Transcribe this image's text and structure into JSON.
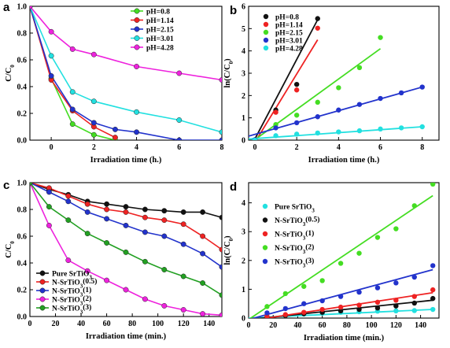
{
  "chart_data": [
    {
      "panel": "a",
      "type": "line",
      "xlabel": "Irradiation time (h.)",
      "ylabel": "C/C",
      "ylabel_sub": "0",
      "xlim": [
        -1,
        8
      ],
      "ylim": [
        0,
        1.0
      ],
      "xticks": [
        0,
        2,
        4,
        6,
        8
      ],
      "yticks": [
        0.0,
        0.2,
        0.4,
        0.6,
        0.8,
        1.0
      ],
      "legend_position": "top-right",
      "series": [
        {
          "name": "pH=0.8",
          "color": "#44dd22",
          "x": [
            -1,
            0,
            1,
            2,
            3
          ],
          "y": [
            1.0,
            0.46,
            0.12,
            0.04,
            0.0
          ]
        },
        {
          "name": "pH=1.14",
          "color": "#ee2222",
          "x": [
            -1,
            0,
            1,
            2,
            3
          ],
          "y": [
            1.0,
            0.45,
            0.22,
            0.1,
            0.02
          ]
        },
        {
          "name": "pH=2.15",
          "color": "#2233cc",
          "x": [
            -1,
            0,
            1,
            2,
            3,
            4,
            6,
            8
          ],
          "y": [
            1.0,
            0.48,
            0.23,
            0.13,
            0.08,
            0.06,
            0.0,
            0.0
          ]
        },
        {
          "name": "pH=3.01",
          "color": "#22e0e0",
          "x": [
            -1,
            0,
            1,
            2,
            4,
            6,
            8
          ],
          "y": [
            1.0,
            0.63,
            0.36,
            0.29,
            0.21,
            0.15,
            0.06
          ]
        },
        {
          "name": "pH=4.28",
          "color": "#ee22dd",
          "x": [
            -1,
            0,
            1,
            2,
            4,
            6,
            8
          ],
          "y": [
            1.0,
            0.81,
            0.68,
            0.64,
            0.55,
            0.5,
            0.45
          ]
        }
      ]
    },
    {
      "panel": "b",
      "type": "scatter",
      "xlabel": "Irradiation time (h.)",
      "ylabel": "ln(C/C)",
      "ylabel_sub": "0",
      "xlim": [
        -0.3,
        8.8
      ],
      "ylim": [
        0,
        6
      ],
      "xticks": [
        0,
        2,
        4,
        6,
        8
      ],
      "yticks": [
        0,
        1,
        2,
        3,
        4,
        5,
        6
      ],
      "legend_position": "top-left",
      "series": [
        {
          "name": "pH=0.8",
          "color": "#111111",
          "x": [
            0,
            1,
            2,
            3
          ],
          "y": [
            0,
            1.35,
            2.5,
            5.45
          ],
          "fit": [
            [
              0,
              0.05
            ],
            [
              3,
              5.4
            ]
          ]
        },
        {
          "name": "pH=1.14",
          "color": "#ee2222",
          "x": [
            0,
            1,
            2,
            3
          ],
          "y": [
            0,
            1.25,
            2.25,
            5.02
          ],
          "fit": [
            [
              0,
              -0.1
            ],
            [
              3,
              4.5
            ]
          ]
        },
        {
          "name": "pH=2.15",
          "color": "#44dd22",
          "x": [
            0,
            1,
            2,
            3,
            4,
            5,
            6
          ],
          "y": [
            0,
            0.7,
            1.12,
            1.7,
            2.35,
            3.25,
            4.6
          ],
          "fit": [
            [
              0,
              0.02
            ],
            [
              6,
              4.1
            ]
          ]
        },
        {
          "name": "pH=3.01",
          "color": "#2233cc",
          "x": [
            0,
            1,
            2,
            3,
            4,
            5,
            6,
            7,
            8
          ],
          "y": [
            0.02,
            0.55,
            0.78,
            1.05,
            1.35,
            1.6,
            1.87,
            2.12,
            2.38
          ],
          "fit": [
            [
              -0.3,
              0.18
            ],
            [
              8,
              2.38
            ]
          ]
        },
        {
          "name": "pH=4.28",
          "color": "#22e0e0",
          "x": [
            0,
            1,
            2,
            3,
            4,
            5,
            6,
            7,
            8
          ],
          "y": [
            0,
            0.2,
            0.27,
            0.32,
            0.37,
            0.42,
            0.5,
            0.55,
            0.6
          ],
          "fit": [
            [
              -0.3,
              0.05
            ],
            [
              8,
              0.6
            ]
          ]
        }
      ]
    },
    {
      "panel": "c",
      "type": "line",
      "xlabel": "Irradiation time (min.)",
      "ylabel": "C/C",
      "ylabel_sub": "0",
      "xlim": [
        0,
        150
      ],
      "ylim": [
        0,
        1.0
      ],
      "xticks": [
        0,
        20,
        40,
        60,
        80,
        100,
        120,
        140
      ],
      "yticks": [
        0.0,
        0.2,
        0.4,
        0.6,
        0.8,
        1.0
      ],
      "legend_position": "bottom-left",
      "series": [
        {
          "name": "Pure SrTiO",
          "sub": "3",
          "color": "#111111",
          "x": [
            0,
            15,
            30,
            45,
            60,
            75,
            90,
            105,
            120,
            135,
            150
          ],
          "y": [
            1.0,
            0.95,
            0.91,
            0.86,
            0.84,
            0.82,
            0.8,
            0.79,
            0.78,
            0.78,
            0.74
          ]
        },
        {
          "name": "N-SrTiO",
          "sub": "3",
          "suffix": "(0.5)",
          "color": "#ee2222",
          "x": [
            0,
            15,
            30,
            45,
            60,
            75,
            90,
            105,
            120,
            135,
            150
          ],
          "y": [
            1.0,
            0.96,
            0.9,
            0.84,
            0.8,
            0.78,
            0.74,
            0.72,
            0.69,
            0.6,
            0.5
          ]
        },
        {
          "name": "N-SrTiO",
          "sub": "3",
          "suffix": "(1)",
          "color": "#2233cc",
          "x": [
            0,
            15,
            30,
            45,
            60,
            75,
            90,
            105,
            120,
            135,
            150
          ],
          "y": [
            1.0,
            0.93,
            0.86,
            0.78,
            0.73,
            0.68,
            0.63,
            0.6,
            0.54,
            0.47,
            0.37
          ]
        },
        {
          "name": "N-SrTiO",
          "sub": "3",
          "suffix": "(2)",
          "color": "#ee22dd",
          "x": [
            0,
            15,
            30,
            45,
            60,
            75,
            90,
            105,
            120,
            135,
            150
          ],
          "y": [
            1.0,
            0.68,
            0.42,
            0.34,
            0.27,
            0.2,
            0.13,
            0.08,
            0.05,
            0.02,
            0.01
          ]
        },
        {
          "name": "N-SrTiO",
          "sub": "3",
          "suffix": "(3)",
          "color": "#22a022",
          "x": [
            0,
            15,
            30,
            45,
            60,
            75,
            90,
            105,
            120,
            135,
            150
          ],
          "y": [
            1.0,
            0.82,
            0.72,
            0.62,
            0.55,
            0.48,
            0.41,
            0.35,
            0.3,
            0.25,
            0.16
          ]
        }
      ]
    },
    {
      "panel": "d",
      "type": "scatter",
      "xlabel": "Irradiation time (min.)",
      "ylabel": "ln(C/C)",
      "ylabel_sub": "0",
      "xlim": [
        0,
        155
      ],
      "ylim": [
        0,
        4.7
      ],
      "xticks": [
        0,
        20,
        40,
        60,
        80,
        100,
        120,
        140
      ],
      "yticks": [
        0,
        1,
        2,
        3,
        4
      ],
      "legend_position": "top-left",
      "series": [
        {
          "name": "Pure SrTiO",
          "sub": "3",
          "color": "#22e0e0",
          "x": [
            15,
            30,
            45,
            60,
            75,
            90,
            105,
            120,
            135,
            150
          ],
          "y": [
            0.05,
            0.09,
            0.14,
            0.17,
            0.2,
            0.22,
            0.24,
            0.25,
            0.26,
            0.3
          ],
          "fit": [
            [
              0,
              0.0
            ],
            [
              150,
              0.3
            ]
          ]
        },
        {
          "name": "N-SrTiO",
          "sub": "3",
          "suffix": "(0.5)",
          "color": "#111111",
          "x": [
            15,
            30,
            45,
            60,
            75,
            90,
            105,
            120,
            135,
            150
          ],
          "y": [
            0.04,
            0.09,
            0.15,
            0.2,
            0.25,
            0.3,
            0.35,
            0.42,
            0.52,
            0.68
          ],
          "fit": [
            [
              0,
              -0.05
            ],
            [
              150,
              0.62
            ]
          ]
        },
        {
          "name": "N-SrTiO",
          "sub": "3",
          "suffix": "(1)",
          "color": "#ee2222",
          "x": [
            15,
            30,
            45,
            60,
            75,
            90,
            105,
            120,
            135,
            150
          ],
          "y": [
            0.06,
            0.12,
            0.2,
            0.3,
            0.38,
            0.45,
            0.55,
            0.62,
            0.75,
            0.98
          ],
          "fit": [
            [
              0,
              -0.1
            ],
            [
              150,
              0.88
            ]
          ]
        },
        {
          "name": "N-SrTiO",
          "sub": "3",
          "suffix": "(2)",
          "color": "#44dd22",
          "x": [
            15,
            30,
            45,
            60,
            75,
            90,
            105,
            120,
            135,
            150
          ],
          "y": [
            0.4,
            0.85,
            1.1,
            1.3,
            1.9,
            2.25,
            2.8,
            3.1,
            3.9,
            4.65
          ],
          "fit": [
            [
              0,
              -0.05
            ],
            [
              150,
              4.25
            ]
          ]
        },
        {
          "name": "N-SrTiO",
          "sub": "3",
          "suffix": "(3)",
          "color": "#2233cc",
          "x": [
            15,
            30,
            45,
            60,
            75,
            90,
            105,
            120,
            135,
            150
          ],
          "y": [
            0.18,
            0.33,
            0.5,
            0.6,
            0.75,
            0.9,
            1.05,
            1.22,
            1.42,
            1.82
          ],
          "fit": [
            [
              0,
              -0.05
            ],
            [
              150,
              1.68
            ]
          ]
        }
      ]
    }
  ]
}
